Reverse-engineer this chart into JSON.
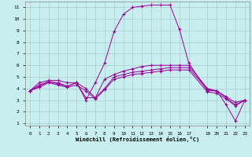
{
  "title": "",
  "xlabel": "Windchill (Refroidissement éolien,°C)",
  "bg_color": "#c8eef0",
  "grid_color": "#aacccc",
  "line_color": "#990099",
  "xlim": [
    -0.5,
    23.5
  ],
  "ylim": [
    0.8,
    11.5
  ],
  "yticks": [
    1,
    2,
    3,
    4,
    5,
    6,
    7,
    8,
    9,
    10,
    11
  ],
  "xticks": [
    0,
    1,
    2,
    3,
    4,
    5,
    6,
    7,
    8,
    9,
    10,
    11,
    12,
    13,
    14,
    15,
    16,
    17,
    19,
    20,
    21,
    22,
    23
  ],
  "series": [
    {
      "x": [
        0,
        1,
        2,
        3,
        4,
        5,
        6,
        7,
        8,
        9,
        10,
        11,
        12,
        13,
        14,
        15,
        16,
        17,
        19,
        20,
        21,
        22,
        23
      ],
      "y": [
        3.8,
        4.5,
        4.7,
        4.7,
        4.5,
        4.5,
        3.0,
        4.5,
        6.2,
        8.9,
        10.4,
        11.0,
        11.1,
        11.2,
        11.2,
        11.2,
        9.1,
        6.2,
        3.8,
        3.8,
        2.6,
        1.2,
        3.0
      ]
    },
    {
      "x": [
        0,
        1,
        2,
        3,
        4,
        5,
        6,
        7,
        8,
        9,
        10,
        11,
        12,
        13,
        14,
        15,
        16,
        17,
        19,
        20,
        21,
        22,
        23
      ],
      "y": [
        3.8,
        4.3,
        4.6,
        4.5,
        4.2,
        4.5,
        3.2,
        3.2,
        4.8,
        5.2,
        5.5,
        5.7,
        5.9,
        6.0,
        6.0,
        6.0,
        6.0,
        6.0,
        4.0,
        3.8,
        3.3,
        2.8,
        3.0
      ]
    },
    {
      "x": [
        0,
        1,
        2,
        3,
        4,
        5,
        6,
        7,
        8,
        9,
        10,
        11,
        12,
        13,
        14,
        15,
        16,
        17,
        19,
        20,
        21,
        22,
        23
      ],
      "y": [
        3.8,
        4.2,
        4.6,
        4.4,
        4.2,
        4.5,
        4.0,
        3.2,
        4.0,
        5.0,
        5.2,
        5.4,
        5.5,
        5.6,
        5.7,
        5.8,
        5.8,
        5.8,
        3.9,
        3.8,
        3.2,
        2.6,
        3.0
      ]
    },
    {
      "x": [
        0,
        1,
        2,
        3,
        4,
        5,
        6,
        7,
        8,
        9,
        10,
        11,
        12,
        13,
        14,
        15,
        16,
        17,
        19,
        20,
        21,
        22,
        23
      ],
      "y": [
        3.8,
        4.1,
        4.5,
        4.3,
        4.1,
        4.3,
        3.8,
        3.1,
        3.9,
        4.8,
        5.0,
        5.2,
        5.3,
        5.4,
        5.5,
        5.6,
        5.6,
        5.6,
        3.7,
        3.6,
        3.1,
        2.5,
        3.0
      ]
    }
  ]
}
